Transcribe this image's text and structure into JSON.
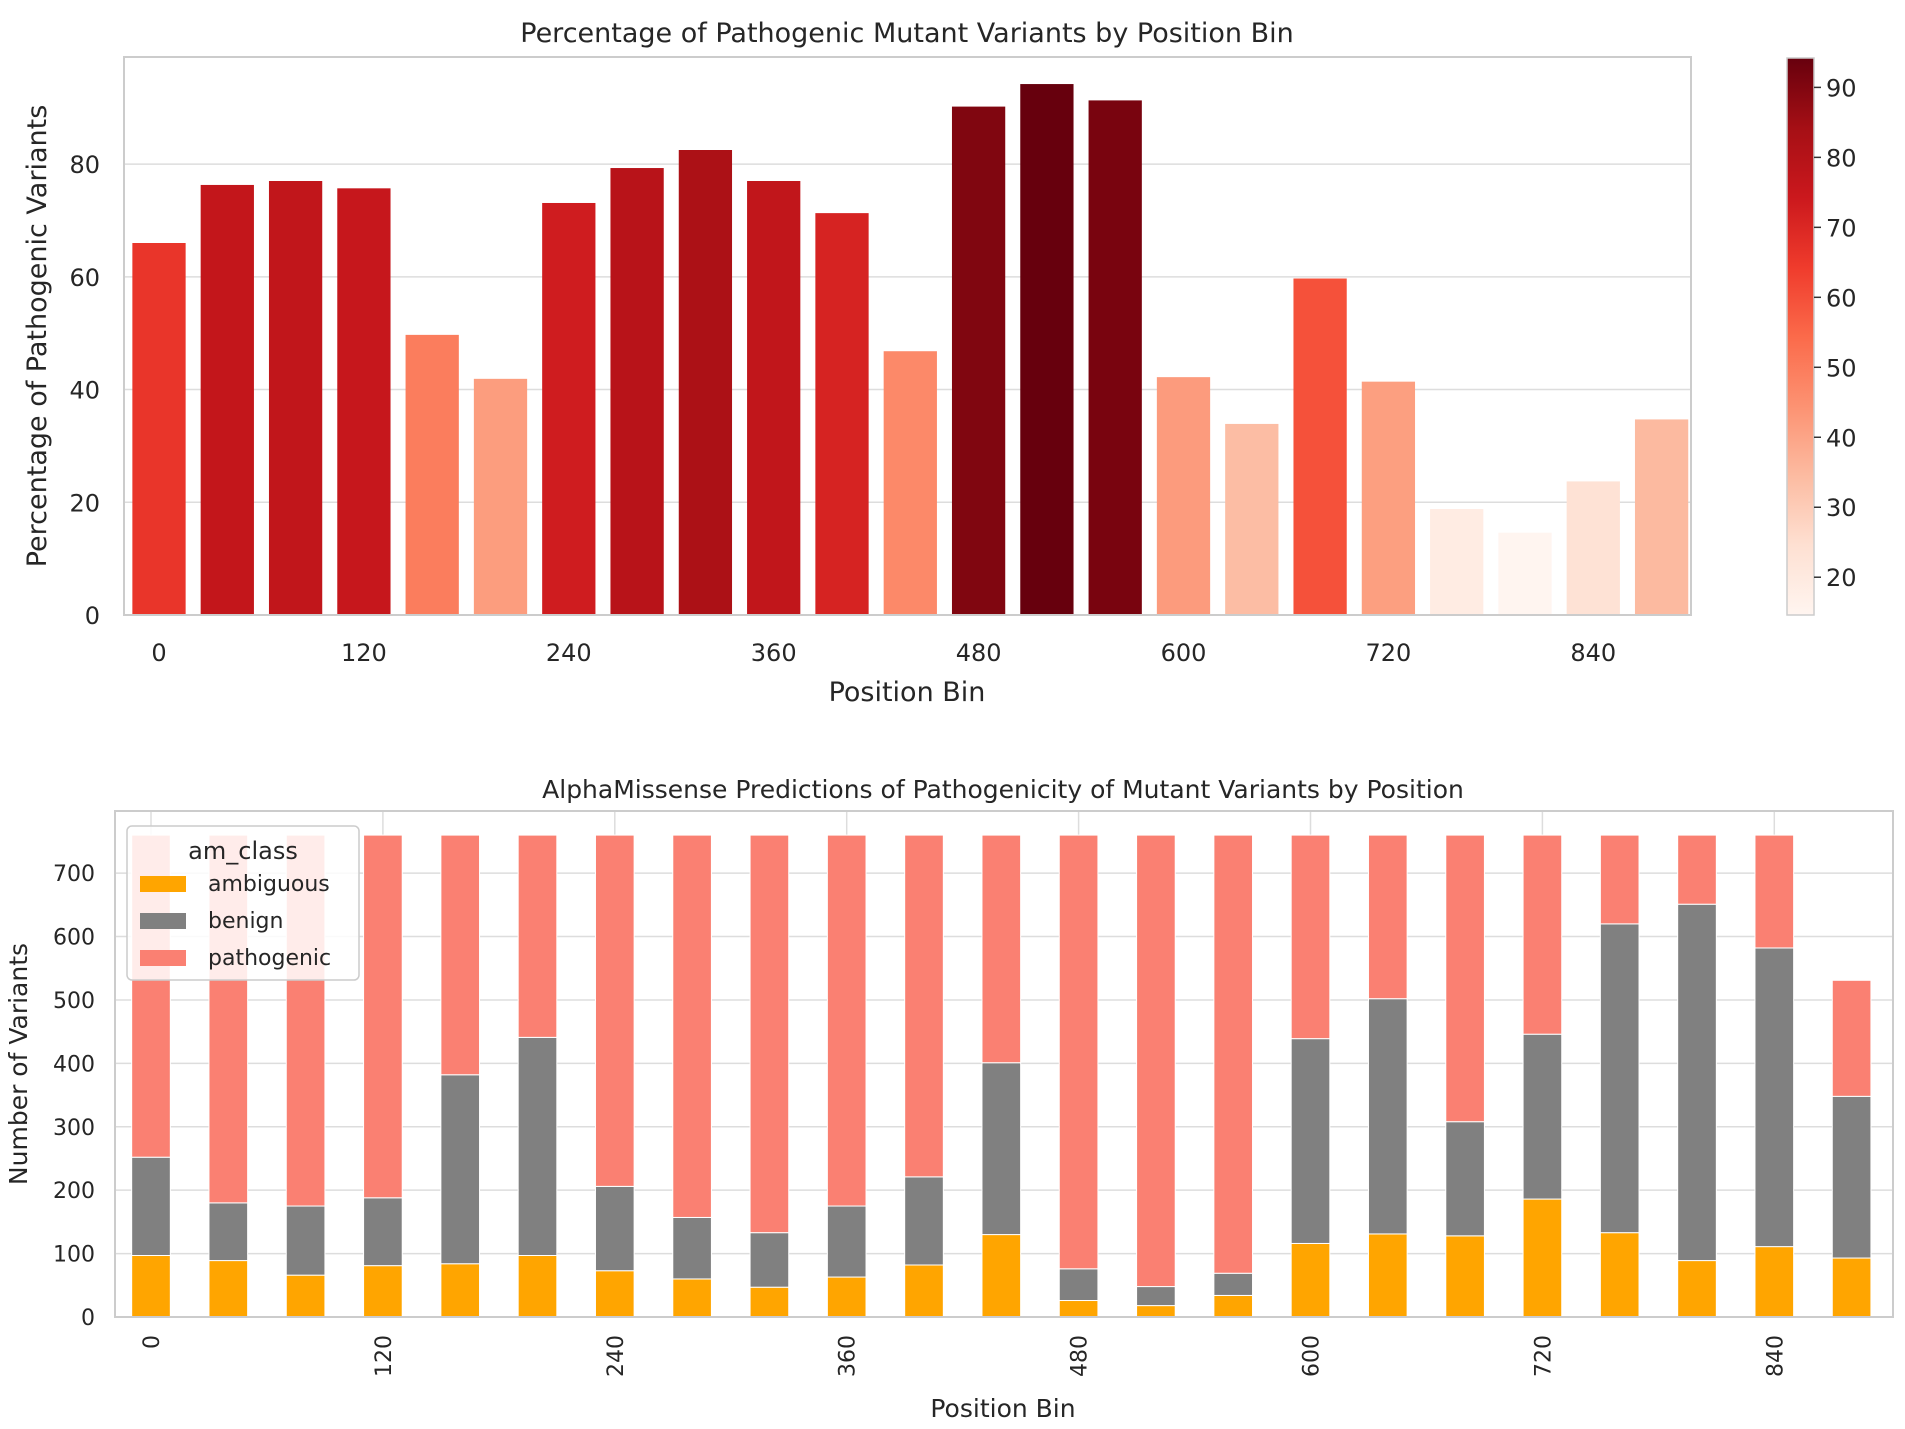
{
  "chart_data": [
    {
      "type": "bar",
      "title": "Percentage of Pathogenic Mutant Variants by Position Bin",
      "xlabel": "Position Bin",
      "ylabel": "Percentage of Pathogenic Variants",
      "categories": [
        0,
        40,
        80,
        120,
        160,
        200,
        240,
        280,
        320,
        360,
        400,
        440,
        480,
        520,
        560,
        600,
        640,
        680,
        720,
        760,
        800,
        840,
        880
      ],
      "values": [
        66,
        76.3,
        77,
        75.7,
        49.7,
        41.9,
        73.1,
        79.3,
        82.5,
        77,
        71.3,
        46.8,
        90.2,
        94.2,
        91.3,
        42.2,
        33.9,
        59.7,
        41.4,
        18.8,
        14.6,
        23.7,
        34.7
      ],
      "xticks": [
        "0",
        "120",
        "240",
        "360",
        "480",
        "600",
        "720",
        "840"
      ],
      "yticks": [
        "0",
        "20",
        "40",
        "60",
        "80"
      ],
      "ylim": [
        0,
        99
      ],
      "grid": true,
      "colormap": "Reds",
      "colorbar": {
        "range": [
          14.6,
          94.2
        ],
        "ticks": [
          "20",
          "30",
          "40",
          "50",
          "60",
          "70",
          "80",
          "90"
        ]
      }
    },
    {
      "type": "bar",
      "stacked": true,
      "title": "AlphaMissense Predictions of Pathogenicity of Mutant Variants by Position",
      "xlabel": "Position Bin",
      "ylabel": "Number of Variants",
      "categories": [
        0,
        40,
        80,
        120,
        160,
        200,
        240,
        280,
        320,
        360,
        400,
        440,
        480,
        520,
        560,
        600,
        640,
        680,
        720,
        760,
        800,
        840,
        880
      ],
      "series": [
        {
          "name": "ambiguous",
          "color": "#ffa500",
          "values": [
            97,
            89,
            66,
            81,
            84,
            97,
            73,
            60,
            47,
            63,
            82,
            130,
            26,
            18,
            34,
            116,
            131,
            128,
            186,
            133,
            89,
            111,
            93
          ]
        },
        {
          "name": "benign",
          "color": "#808080",
          "values": [
            155,
            91,
            109,
            107,
            298,
            344,
            133,
            97,
            86,
            112,
            139,
            271,
            50,
            30,
            35,
            323,
            371,
            180,
            260,
            487,
            562,
            471,
            255
          ]
        },
        {
          "name": "pathogenic",
          "color": "#fa8072",
          "values": [
            508,
            580,
            585,
            572,
            378,
            319,
            554,
            603,
            627,
            585,
            539,
            359,
            684,
            712,
            691,
            321,
            258,
            452,
            314,
            140,
            109,
            178,
            183
          ]
        }
      ],
      "xticks": [
        "0",
        "120",
        "240",
        "360",
        "480",
        "600",
        "720",
        "840"
      ],
      "yticks": [
        "0",
        "100",
        "200",
        "300",
        "400",
        "500",
        "600",
        "700"
      ],
      "ylim": [
        0,
        798
      ],
      "grid": true,
      "legend": {
        "title": "am_class",
        "position": "top-left"
      }
    }
  ]
}
